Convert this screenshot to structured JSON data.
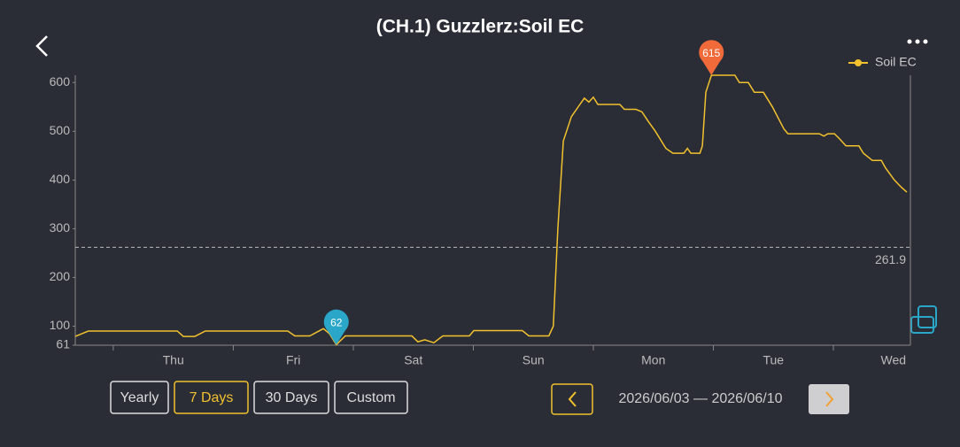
{
  "title": "(CH.1) Guzzlerz:Soil EC",
  "chart_data": {
    "type": "line",
    "x": [
      -7.6,
      -5.0,
      12.8,
      14.0,
      16.3,
      18.4,
      34.9,
      36.3,
      39.3,
      42.0,
      43.2,
      44.6,
      46.4,
      59.7,
      60.9,
      62.3,
      64.1,
      65.9,
      71.2,
      72.1,
      81.8,
      83.1,
      87.1,
      88.0,
      88.9,
      90.0,
      91.6,
      93.3,
      94.2,
      95.1,
      96.0,
      96.9,
      101.3,
      102.2,
      104.5,
      105.7,
      107.0,
      108.4,
      110.5,
      111.9,
      114.1,
      114.8,
      115.5,
      117.3,
      117.8,
      118.5,
      119.6,
      124.3,
      125.2,
      127.0,
      128.2,
      130.0,
      131.8,
      134.1,
      134.9,
      141.2,
      142.1,
      142.9,
      144.2,
      145.2,
      146.5,
      149.1,
      150.0,
      151.8,
      153.6,
      154.4,
      156.2,
      157.6,
      158.7
    ],
    "series": [
      {
        "name": "Soil EC",
        "color": "#f2c12e",
        "values": [
          79,
          90,
          90,
          79,
          79,
          90,
          90,
          80,
          80,
          95,
          85,
          62,
          80,
          80,
          68,
          72,
          66,
          80,
          80,
          91,
          91,
          80,
          80,
          100,
          300,
          480,
          530,
          555,
          568,
          560,
          570,
          555,
          555,
          545,
          545,
          540,
          520,
          500,
          465,
          455,
          455,
          465,
          455,
          455,
          470,
          580,
          615,
          615,
          600,
          600,
          580,
          580,
          550,
          505,
          495,
          495,
          490,
          495,
          495,
          485,
          470,
          470,
          455,
          440,
          440,
          425,
          400,
          385,
          375
        ]
      }
    ],
    "xlim": [
      -7.6,
      159.4
    ],
    "xticks": [
      {
        "value": 12,
        "label": "Thu"
      },
      {
        "value": 36,
        "label": "Fri"
      },
      {
        "value": 60,
        "label": "Sat"
      },
      {
        "value": 84,
        "label": "Sun"
      },
      {
        "value": 108,
        "label": "Mon"
      },
      {
        "value": 132,
        "label": "Tue"
      },
      {
        "value": 156,
        "label": "Wed"
      }
    ],
    "xminorticks": [
      0,
      24,
      48,
      72,
      96,
      120,
      144
    ],
    "ylim": [
      61,
      615
    ],
    "yticks": [
      61,
      100,
      200,
      300,
      400,
      500,
      600
    ],
    "reference_line": 261.9,
    "max_marker": {
      "x": 119.6,
      "value": 615,
      "color": "#f06a3a"
    },
    "min_marker": {
      "x": 44.6,
      "value": 62,
      "color": "#2aa6c8"
    },
    "legend": "top-right",
    "grid": false
  },
  "controls": {
    "ranges": [
      "Yearly",
      "7 Days",
      "30 Days",
      "Custom"
    ],
    "active": "7 Days",
    "date_range": "2026/06/03 — 2026/06/10"
  }
}
